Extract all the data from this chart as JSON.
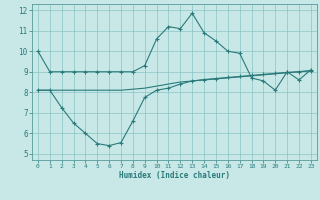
{
  "xlabel": "Humidex (Indice chaleur)",
  "xlim": [
    -0.5,
    23.5
  ],
  "ylim": [
    4.7,
    12.3
  ],
  "yticks": [
    5,
    6,
    7,
    8,
    9,
    10,
    11,
    12
  ],
  "xticks": [
    0,
    1,
    2,
    3,
    4,
    5,
    6,
    7,
    8,
    9,
    10,
    11,
    12,
    13,
    14,
    15,
    16,
    17,
    18,
    19,
    20,
    21,
    22,
    23
  ],
  "line_color": "#2a7a7a",
  "bg_color": "#c8e8e8",
  "line1_x": [
    0,
    1,
    2,
    3,
    4,
    5,
    6,
    7,
    8,
    9,
    10,
    11,
    12,
    13,
    14,
    15,
    16,
    17,
    18,
    19,
    20,
    21,
    22,
    23
  ],
  "line1_y": [
    10.0,
    9.0,
    9.0,
    9.0,
    9.0,
    9.0,
    9.0,
    9.0,
    9.0,
    9.3,
    10.6,
    11.2,
    11.1,
    11.85,
    10.9,
    10.5,
    10.0,
    9.9,
    8.7,
    8.55,
    8.1,
    9.0,
    8.6,
    9.1
  ],
  "line2_x": [
    0,
    1,
    2,
    3,
    4,
    5,
    6,
    7,
    8,
    9,
    10,
    11,
    12,
    13,
    14,
    15,
    16,
    17,
    18,
    19,
    20,
    21,
    22,
    23
  ],
  "line2_y": [
    8.1,
    8.1,
    8.1,
    8.1,
    8.1,
    8.1,
    8.1,
    8.1,
    8.15,
    8.2,
    8.3,
    8.4,
    8.5,
    8.55,
    8.6,
    8.65,
    8.7,
    8.75,
    8.8,
    8.85,
    8.9,
    8.95,
    9.0,
    9.05
  ],
  "line3_x": [
    0,
    1,
    2,
    3,
    4,
    5,
    6,
    7,
    8,
    9,
    10,
    11,
    12,
    13,
    14,
    15,
    16,
    17,
    18,
    19,
    20,
    21,
    22,
    23
  ],
  "line3_y": [
    8.1,
    8.1,
    7.25,
    6.5,
    6.0,
    5.5,
    5.4,
    5.55,
    6.6,
    7.75,
    8.1,
    8.2,
    8.4,
    8.55,
    8.62,
    8.67,
    8.72,
    8.77,
    8.82,
    8.87,
    8.92,
    8.97,
    9.0,
    9.05
  ]
}
